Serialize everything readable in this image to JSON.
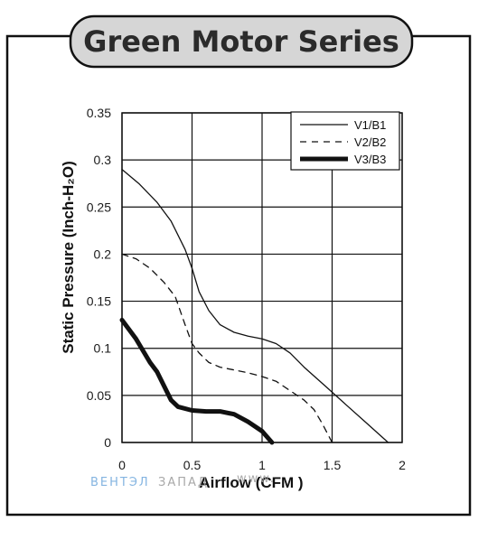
{
  "title": "Green Motor Series",
  "watermark": {
    "brand_blue": "ВЕНТЭЛ",
    "brand_gray": "ЗАПАД",
    "site": "www."
  },
  "chart_data": {
    "type": "line",
    "xlabel": "Airflow (CFM )",
    "ylabel": "Static Pressure (Inch-H₂O)",
    "xlim": [
      0,
      2
    ],
    "ylim": [
      0,
      0.35
    ],
    "x_ticks": [
      "0",
      "0.5",
      "1",
      "1.5",
      "2"
    ],
    "y_ticks": [
      "0",
      "0.05",
      "0.1",
      "0.15",
      "0.2",
      "0.25",
      "0.3",
      "0.35"
    ],
    "grid": true,
    "legend_position": "top-right",
    "series": [
      {
        "name": "V1/B1",
        "style": "solid-thin",
        "points": [
          [
            0,
            0.29
          ],
          [
            0.12,
            0.275
          ],
          [
            0.25,
            0.255
          ],
          [
            0.35,
            0.235
          ],
          [
            0.45,
            0.205
          ],
          [
            0.5,
            0.185
          ],
          [
            0.55,
            0.16
          ],
          [
            0.62,
            0.14
          ],
          [
            0.7,
            0.125
          ],
          [
            0.8,
            0.117
          ],
          [
            0.9,
            0.113
          ],
          [
            1.0,
            0.11
          ],
          [
            1.1,
            0.105
          ],
          [
            1.2,
            0.095
          ],
          [
            1.3,
            0.08
          ],
          [
            1.45,
            0.06
          ],
          [
            1.6,
            0.04
          ],
          [
            1.75,
            0.02
          ],
          [
            1.9,
            0.0
          ]
        ]
      },
      {
        "name": "V2/B2",
        "style": "dashed",
        "points": [
          [
            0,
            0.2
          ],
          [
            0.1,
            0.195
          ],
          [
            0.2,
            0.185
          ],
          [
            0.3,
            0.17
          ],
          [
            0.38,
            0.155
          ],
          [
            0.45,
            0.125
          ],
          [
            0.5,
            0.105
          ],
          [
            0.55,
            0.095
          ],
          [
            0.62,
            0.085
          ],
          [
            0.7,
            0.08
          ],
          [
            0.8,
            0.077
          ],
          [
            0.9,
            0.074
          ],
          [
            1.0,
            0.07
          ],
          [
            1.1,
            0.065
          ],
          [
            1.2,
            0.055
          ],
          [
            1.3,
            0.045
          ],
          [
            1.37,
            0.035
          ],
          [
            1.43,
            0.02
          ],
          [
            1.5,
            0.0
          ]
        ]
      },
      {
        "name": "V3/B3",
        "style": "solid-thick",
        "points": [
          [
            0,
            0.13
          ],
          [
            0.1,
            0.11
          ],
          [
            0.2,
            0.085
          ],
          [
            0.25,
            0.075
          ],
          [
            0.3,
            0.06
          ],
          [
            0.35,
            0.045
          ],
          [
            0.4,
            0.038
          ],
          [
            0.5,
            0.034
          ],
          [
            0.6,
            0.033
          ],
          [
            0.7,
            0.033
          ],
          [
            0.8,
            0.03
          ],
          [
            0.9,
            0.022
          ],
          [
            1.0,
            0.012
          ],
          [
            1.07,
            0.0
          ]
        ]
      }
    ]
  }
}
